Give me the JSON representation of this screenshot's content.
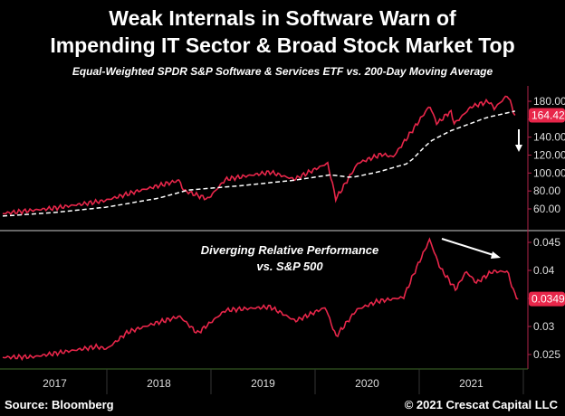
{
  "chart_data": [
    {
      "type": "line",
      "title": "Weak Internals in Software Warn of",
      "title_line2": "Impending IT Sector & Broad Stock Market Top",
      "subtitle": "Equal-Weighted SPDR S&P Software & Services ETF vs. 200-Day Moving Average",
      "ylim": [
        45,
        195
      ],
      "yticks": [
        60,
        80,
        100,
        120,
        140,
        160,
        180
      ],
      "ytick_labels": [
        "60.00",
        "80.00",
        "100.00",
        "120.00",
        "140.00",
        "",
        "180.00"
      ],
      "last_value_label": "164.42",
      "series": [
        {
          "name": "ETF price",
          "color": "#e8264a",
          "style": "solid",
          "x": [
            2017.0,
            2017.5,
            2017.97,
            2018.3,
            2018.7,
            2018.73,
            2018.97,
            2019.14,
            2019.57,
            2019.8,
            2020.12,
            2020.2,
            2020.41,
            2020.64,
            2020.75,
            2020.95,
            2021.1,
            2021.17,
            2021.3,
            2021.34,
            2021.5,
            2021.67,
            2021.72,
            2021.85,
            2021.92
          ],
          "y": [
            55,
            61,
            69,
            80,
            92,
            81,
            71,
            93,
            101,
            93,
            111,
            71,
            111,
            121,
            118,
            150,
            175,
            155,
            169,
            155,
            174,
            180,
            172,
            187,
            164.42
          ]
        },
        {
          "name": "200-Day Moving Average",
          "color": "#ffffff",
          "style": "dashed",
          "x": [
            2017.0,
            2017.5,
            2018.0,
            2018.5,
            2018.78,
            2019.3,
            2019.8,
            2020.15,
            2020.35,
            2020.6,
            2020.9,
            2021.1,
            2021.3,
            2021.65,
            2021.92
          ],
          "y": [
            52,
            56,
            62,
            72,
            81,
            86,
            92,
            98,
            95,
            101,
            111,
            135,
            147,
            162,
            169
          ]
        }
      ]
    },
    {
      "type": "line",
      "annotation": [
        "Diverging Relative Performance",
        "vs. S&P 500"
      ],
      "ylim": [
        0.0235,
        0.0475
      ],
      "yticks": [
        0.025,
        0.03,
        0.035,
        0.04,
        0.045
      ],
      "ytick_labels": [
        "0.025",
        "0.03",
        "",
        "0.04",
        "0.045"
      ],
      "last_value_label": "0.0349",
      "series": [
        {
          "name": "Relative performance vs. S&P 500",
          "color": "#e8264a",
          "x": [
            2017.0,
            2017.3,
            2017.9,
            2018.0,
            2018.2,
            2018.45,
            2018.7,
            2018.87,
            2019.14,
            2019.57,
            2019.81,
            2020.1,
            2020.2,
            2020.4,
            2020.6,
            2020.85,
            2020.95,
            2021.1,
            2021.2,
            2021.35,
            2021.45,
            2021.55,
            2021.7,
            2021.85,
            2021.9,
            2021.95
          ],
          "y": [
            0.0245,
            0.0246,
            0.0264,
            0.026,
            0.029,
            0.0305,
            0.0318,
            0.0288,
            0.0329,
            0.0335,
            0.031,
            0.0334,
            0.0282,
            0.033,
            0.0345,
            0.0352,
            0.0395,
            0.0455,
            0.0405,
            0.0366,
            0.0398,
            0.0378,
            0.0398,
            0.0398,
            0.0365,
            0.0349
          ]
        }
      ]
    }
  ],
  "x_axis": {
    "range": [
      2017,
      2022
    ],
    "labels": [
      "2017",
      "2018",
      "2019",
      "2020",
      "2021"
    ]
  },
  "footer": {
    "source": "Source: Bloomberg",
    "copyright": "© 2021 Crescat Capital LLC"
  }
}
